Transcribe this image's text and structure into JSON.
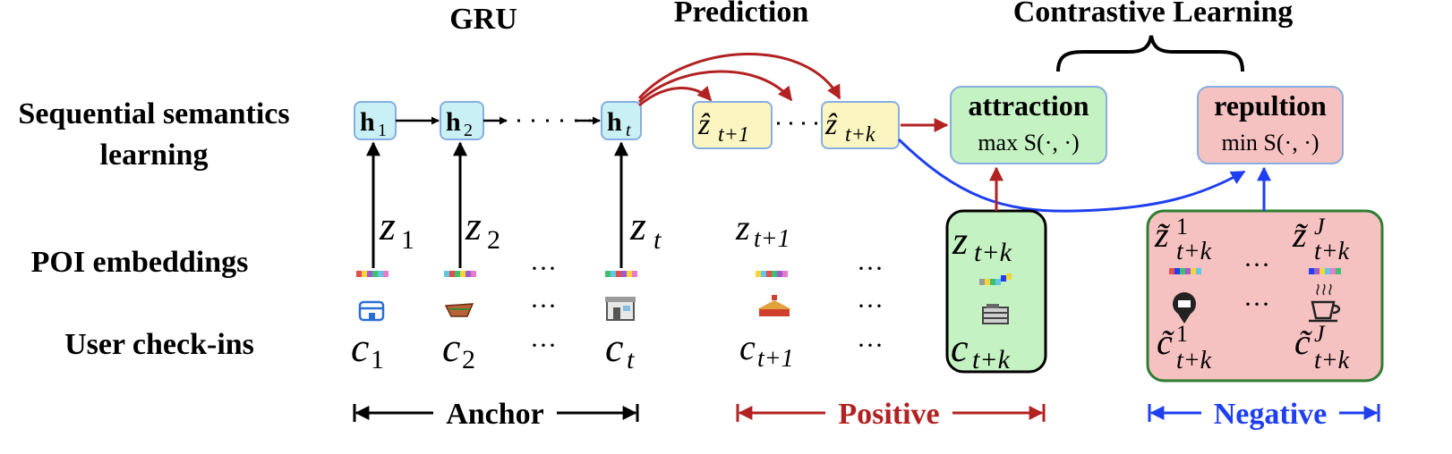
{
  "headers": {
    "gru": "GRU",
    "prediction": "Prediction",
    "contrastive": "Contrastive Learning"
  },
  "rows": {
    "sequential_line1": "Sequential semantics",
    "sequential_line2": "learning",
    "poi_embeddings": "POI embeddings",
    "user_checkins": "User check-ins"
  },
  "hidden_states": {
    "h1": {
      "base": "h",
      "sub": "1"
    },
    "h2": {
      "base": "h",
      "sub": "2"
    },
    "ht": {
      "base": "h",
      "sub": "t"
    }
  },
  "predictions": {
    "zhat_t1": {
      "base": "ẑ",
      "sub": "t+1"
    },
    "zhat_tk": {
      "base": "ẑ",
      "sub": "t+k"
    }
  },
  "attraction": {
    "title": "attraction",
    "formula": "max S(·, ·)"
  },
  "repulsion": {
    "title": "repultion",
    "formula": "min S(·, ·)"
  },
  "embeddings": {
    "z1": {
      "base": "z",
      "sub": "1"
    },
    "z2": {
      "base": "z",
      "sub": "2"
    },
    "zt": {
      "base": "z",
      "sub": "t"
    },
    "zt1": {
      "base": "z",
      "sub": "t+1"
    },
    "ztk": {
      "base": "z",
      "sub": "t+k"
    },
    "zneg1": {
      "base": "z̃",
      "sup": "1",
      "sub": "t+k"
    },
    "znegJ": {
      "base": "z̃",
      "sup": "J",
      "sub": "t+k"
    }
  },
  "checkins": {
    "c1": {
      "base": "c",
      "sub": "1"
    },
    "c2": {
      "base": "c",
      "sub": "2"
    },
    "ct": {
      "base": "c",
      "sub": "t"
    },
    "ct1": {
      "base": "c",
      "sub": "t+1"
    },
    "ctk": {
      "base": "c",
      "sub": "t+k"
    },
    "cneg1": {
      "base": "c̃",
      "sup": "1",
      "sub": "t+k"
    },
    "cnegJ": {
      "base": "c̃",
      "sup": "J",
      "sub": "t+k"
    }
  },
  "ellipsis": "···",
  "groups": {
    "anchor": "Anchor",
    "positive": "Positive",
    "negative": "Negative"
  },
  "icons": [
    "shop-icon",
    "food-icon",
    "store-icon",
    "temple-icon",
    "building-icon",
    "location-pin-icon",
    "coffee-cup-icon"
  ],
  "colors": {
    "hidden_fill": "#c9f0f4",
    "prediction_fill": "#fbf5c1",
    "attraction_fill": "#c5f2c2",
    "repulsion_fill": "#f6c2c1",
    "positive_color": "#b22222",
    "negative_color": "#1f3ff0",
    "node_border": "#86aee0"
  }
}
